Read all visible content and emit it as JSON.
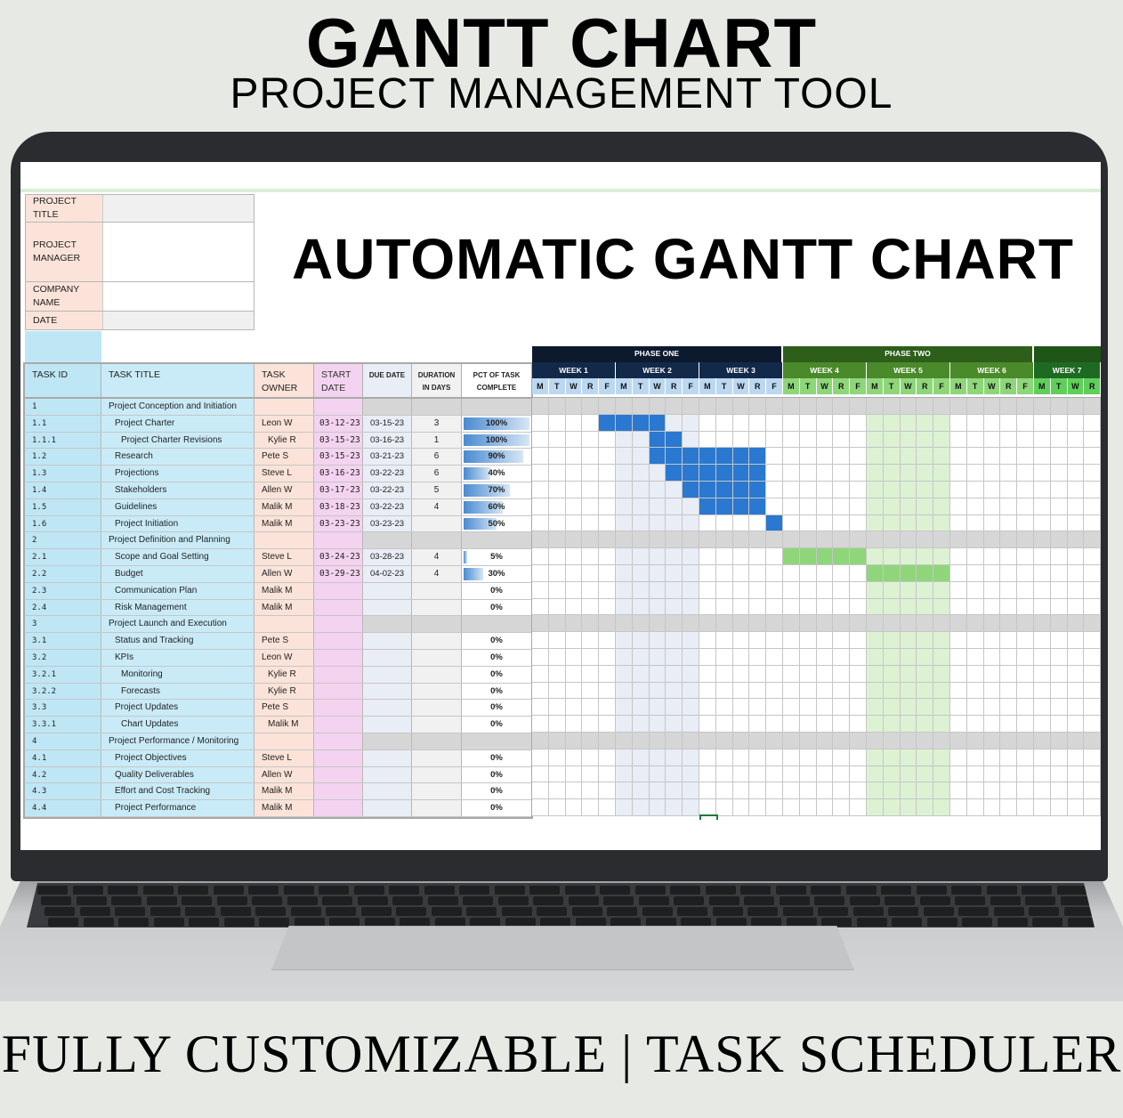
{
  "header": {
    "title": "GANTT CHART",
    "subtitle": "PROJECT MANAGEMENT TOOL"
  },
  "footer": {
    "text": "FULLY CUSTOMIZABLE | TASK SCHEDULER"
  },
  "sheet": {
    "title": "AUTOMATIC GANTT CHART",
    "info": [
      {
        "label": "PROJECT TITLE",
        "value": ""
      },
      {
        "label": "PROJECT MANAGER",
        "value": ""
      },
      {
        "label": "COMPANY NAME",
        "value": ""
      },
      {
        "label": "DATE",
        "value": ""
      }
    ],
    "columns": [
      "TASK ID",
      "TASK TITLE",
      "TASK OWNER",
      "START DATE",
      "DUE DATE",
      "DURATION IN DAYS",
      "PCT OF TASK COMPLETE"
    ],
    "phases": [
      {
        "label": "PHASE ONE",
        "weeks": 3,
        "color": "#0d1a2e"
      },
      {
        "label": "PHASE TWO",
        "weeks": 3,
        "color": "#2d5e1a"
      },
      {
        "label": "",
        "weeks": 1,
        "color": "#1f5517"
      }
    ],
    "weeks": [
      {
        "label": "WEEK 1",
        "color": "#13294a",
        "day_color": "#bcd8f1"
      },
      {
        "label": "WEEK 2",
        "color": "#13294a",
        "day_color": "#bcd8f1"
      },
      {
        "label": "WEEK 3",
        "color": "#13294a",
        "day_color": "#bcd8f1"
      },
      {
        "label": "WEEK 4",
        "color": "#4a8a2a",
        "day_color": "#8fd67a"
      },
      {
        "label": "WEEK 5",
        "color": "#4a8a2a",
        "day_color": "#8fd67a"
      },
      {
        "label": "WEEK 6",
        "color": "#4a8a2a",
        "day_color": "#8fd67a"
      },
      {
        "label": "WEEK 7",
        "color": "#1f6a22",
        "day_color": "#5fcf5a",
        "days_visible": 4
      }
    ],
    "day_letters": [
      "M",
      "T",
      "W",
      "R",
      "F"
    ],
    "highlight_columns": {
      "week2": "#e8edf6",
      "week5": "#dcf2d3"
    },
    "bar_colors": {
      "phase1": "#2a78cf",
      "phase2": "#8fd67a"
    },
    "tasks": [
      {
        "id": "1",
        "title": "Project Conception and Initiation",
        "group": true
      },
      {
        "id": "1.1",
        "title": "Project Charter",
        "level": 1,
        "owner": "Leon W",
        "start": "03-12-23",
        "due": "03-15-23",
        "duration": "3",
        "pct": "100%",
        "pct_value": 100,
        "bar": [
          4,
          7
        ],
        "phase": 1
      },
      {
        "id": "1.1.1",
        "title": "Project Charter Revisions",
        "level": 2,
        "owner": "Kylie R",
        "start": "03-15-23",
        "due": "03-16-23",
        "duration": "1",
        "pct": "100%",
        "pct_value": 100,
        "bar": [
          7,
          8
        ],
        "phase": 1
      },
      {
        "id": "1.2",
        "title": "Research",
        "level": 1,
        "owner": "Pete S",
        "start": "03-15-23",
        "due": "03-21-23",
        "duration": "6",
        "pct": "90%",
        "pct_value": 90,
        "bar": [
          7,
          13
        ],
        "phase": 1
      },
      {
        "id": "1.3",
        "title": "Projections",
        "level": 1,
        "owner": "Steve L",
        "start": "03-16-23",
        "due": "03-22-23",
        "duration": "6",
        "pct": "40%",
        "pct_value": 40,
        "bar": [
          8,
          13
        ],
        "phase": 1
      },
      {
        "id": "1.4",
        "title": "Stakeholders",
        "level": 1,
        "owner": "Allen W",
        "start": "03-17-23",
        "due": "03-22-23",
        "duration": "5",
        "pct": "70%",
        "pct_value": 70,
        "bar": [
          9,
          13
        ],
        "phase": 1
      },
      {
        "id": "1.5",
        "title": "Guidelines",
        "level": 1,
        "owner": "Malik M",
        "start": "03-18-23",
        "due": "03-22-23",
        "duration": "4",
        "pct": "60%",
        "pct_value": 60,
        "bar": [
          10,
          13
        ],
        "phase": 1
      },
      {
        "id": "1.6",
        "title": "Project Initiation",
        "level": 1,
        "owner": "Malik M",
        "start": "03-23-23",
        "due": "03-23-23",
        "duration": "",
        "pct": "50%",
        "pct_value": 50,
        "bar": [
          14,
          14
        ],
        "phase": 1
      },
      {
        "id": "2",
        "title": "Project Definition and Planning",
        "group": true
      },
      {
        "id": "2.1",
        "title": "Scope and Goal Setting",
        "level": 1,
        "owner": "Steve L",
        "start": "03-24-23",
        "due": "03-28-23",
        "duration": "4",
        "pct": "5%",
        "pct_value": 5,
        "bar": [
          15,
          19
        ],
        "phase": 2
      },
      {
        "id": "2.2",
        "title": "Budget",
        "level": 1,
        "owner": "Allen W",
        "start": "03-29-23",
        "due": "04-02-23",
        "duration": "4",
        "pct": "30%",
        "pct_value": 30,
        "bar": [
          20,
          24
        ],
        "phase": 2
      },
      {
        "id": "2.3",
        "title": "Communication Plan",
        "level": 1,
        "owner": "Malik M",
        "pct": "0%",
        "pct_value": 0
      },
      {
        "id": "2.4",
        "title": "Risk Management",
        "level": 1,
        "owner": "Malik M",
        "pct": "0%",
        "pct_value": 0
      },
      {
        "id": "3",
        "title": "Project Launch and Execution",
        "group": true
      },
      {
        "id": "3.1",
        "title": "Status and Tracking",
        "level": 1,
        "owner": "Pete S",
        "pct": "0%",
        "pct_value": 0
      },
      {
        "id": "3.2",
        "title": "KPIs",
        "level": 1,
        "owner": "Leon W",
        "pct": "0%",
        "pct_value": 0
      },
      {
        "id": "3.2.1",
        "title": "Monitoring",
        "level": 2,
        "owner": "Kylie R",
        "pct": "0%",
        "pct_value": 0
      },
      {
        "id": "3.2.2",
        "title": "Forecasts",
        "level": 2,
        "owner": "Kylie R",
        "pct": "0%",
        "pct_value": 0
      },
      {
        "id": "3.3",
        "title": "Project Updates",
        "level": 1,
        "owner": "Pete S",
        "pct": "0%",
        "pct_value": 0
      },
      {
        "id": "3.3.1",
        "title": "Chart Updates",
        "level": 2,
        "owner": "Malik M",
        "pct": "0%",
        "pct_value": 0
      },
      {
        "id": "4",
        "title": "Project Performance / Monitoring",
        "group": true
      },
      {
        "id": "4.1",
        "title": "Project Objectives",
        "level": 1,
        "owner": "Steve L",
        "pct": "0%",
        "pct_value": 0
      },
      {
        "id": "4.2",
        "title": "Quality Deliverables",
        "level": 1,
        "owner": "Allen W",
        "pct": "0%",
        "pct_value": 0
      },
      {
        "id": "4.3",
        "title": "Effort and Cost Tracking",
        "level": 1,
        "owner": "Malik M",
        "pct": "0%",
        "pct_value": 0
      },
      {
        "id": "4.4",
        "title": "Project Performance",
        "level": 1,
        "owner": "Malik M",
        "pct": "0%",
        "pct_value": 0
      }
    ]
  }
}
